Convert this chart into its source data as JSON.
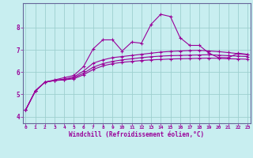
{
  "xlabel": "Windchill (Refroidissement éolien,°C)",
  "bg_color": "#c8eef0",
  "grid_color": "#9ecfcf",
  "line_color": "#990099",
  "spine_color": "#666699",
  "x_ticks": [
    0,
    1,
    2,
    3,
    4,
    5,
    6,
    7,
    8,
    9,
    10,
    11,
    12,
    13,
    14,
    15,
    16,
    17,
    18,
    19,
    20,
    21,
    22,
    23
  ],
  "y_ticks": [
    4,
    5,
    6,
    7,
    8
  ],
  "xlim": [
    -0.3,
    23.3
  ],
  "ylim": [
    3.7,
    9.1
  ],
  "curves": [
    {
      "x": [
        0,
        1,
        2,
        3,
        4,
        5,
        6,
        7,
        8,
        9,
        10,
        11,
        12,
        13,
        14,
        15,
        16,
        17,
        18,
        19,
        20,
        21,
        22,
        23
      ],
      "y": [
        4.3,
        5.15,
        5.55,
        5.65,
        5.75,
        5.85,
        6.25,
        7.05,
        7.45,
        7.45,
        6.95,
        7.35,
        7.3,
        8.15,
        8.6,
        8.5,
        7.55,
        7.2,
        7.2,
        6.85,
        6.65,
        6.65,
        6.85,
        6.8
      ]
    },
    {
      "x": [
        0,
        1,
        2,
        3,
        4,
        5,
        6,
        7,
        8,
        9,
        10,
        11,
        12,
        13,
        14,
        15,
        16,
        17,
        18,
        19,
        20,
        21,
        22,
        23
      ],
      "y": [
        4.3,
        5.15,
        5.55,
        5.62,
        5.68,
        5.78,
        6.05,
        6.4,
        6.55,
        6.65,
        6.7,
        6.75,
        6.8,
        6.85,
        6.9,
        6.93,
        6.95,
        6.97,
        6.98,
        6.95,
        6.92,
        6.88,
        6.83,
        6.78
      ]
    },
    {
      "x": [
        0,
        1,
        2,
        3,
        4,
        5,
        6,
        7,
        8,
        9,
        10,
        11,
        12,
        13,
        14,
        15,
        16,
        17,
        18,
        19,
        20,
        21,
        22,
        23
      ],
      "y": [
        4.3,
        5.15,
        5.55,
        5.62,
        5.67,
        5.74,
        5.95,
        6.22,
        6.38,
        6.48,
        6.55,
        6.6,
        6.65,
        6.69,
        6.72,
        6.74,
        6.75,
        6.76,
        6.77,
        6.78,
        6.76,
        6.74,
        6.72,
        6.7
      ]
    },
    {
      "x": [
        0,
        1,
        2,
        3,
        4,
        5,
        6,
        7,
        8,
        9,
        10,
        11,
        12,
        13,
        14,
        15,
        16,
        17,
        18,
        19,
        20,
        21,
        22,
        23
      ],
      "y": [
        4.3,
        5.15,
        5.55,
        5.62,
        5.65,
        5.7,
        5.88,
        6.12,
        6.28,
        6.38,
        6.44,
        6.48,
        6.52,
        6.55,
        6.57,
        6.59,
        6.6,
        6.61,
        6.62,
        6.63,
        6.62,
        6.6,
        6.59,
        6.58
      ]
    }
  ]
}
